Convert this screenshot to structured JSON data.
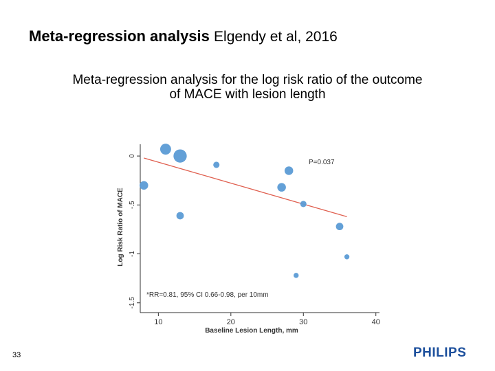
{
  "slide": {
    "title_bold": "Meta-regression analysis",
    "title_normal": "Elgendy et al, 2016",
    "subtitle_line1": "Meta-regression analysis for the log risk ratio of the outcome",
    "subtitle_line2": "of MACE with lesion length",
    "page_number": "33",
    "logo_text": "PHILIPS",
    "brand_color": "#1c4f9c"
  },
  "chart_data": {
    "type": "scatter",
    "title": "",
    "xlabel": "Baseline Lesion Length, mm",
    "ylabel": "Log Risk Ratio of MACE",
    "xlim": [
      7.5,
      40.5
    ],
    "ylim": [
      -1.6,
      0.12
    ],
    "xticks": [
      10,
      20,
      30,
      40
    ],
    "yticks": [
      0,
      -0.5,
      -1,
      -1.5
    ],
    "ytick_labels": [
      "0",
      "-.5",
      "-1",
      "-1.5"
    ],
    "marker_color": "#5b9bd5",
    "line_color": "#e06050",
    "points": [
      {
        "x": 8,
        "y": -0.3,
        "weight": 5
      },
      {
        "x": 11,
        "y": 0.07,
        "weight": 7
      },
      {
        "x": 13,
        "y": 0.0,
        "weight": 9
      },
      {
        "x": 13,
        "y": -0.61,
        "weight": 4
      },
      {
        "x": 18,
        "y": -0.09,
        "weight": 3
      },
      {
        "x": 27,
        "y": -0.32,
        "weight": 5
      },
      {
        "x": 28,
        "y": -0.15,
        "weight": 5
      },
      {
        "x": 29,
        "y": -1.22,
        "weight": 2
      },
      {
        "x": 30,
        "y": -0.49,
        "weight": 3
      },
      {
        "x": 35,
        "y": -0.72,
        "weight": 4
      },
      {
        "x": 36,
        "y": -1.03,
        "weight": 2
      }
    ],
    "fit_line": {
      "x": [
        8,
        36
      ],
      "y": [
        -0.02,
        -0.62
      ]
    },
    "annotations": {
      "p_value": "P=0.037",
      "rr_note": "*RR=0.81, 95% CI 0.66-0.98, per 10mm"
    }
  }
}
